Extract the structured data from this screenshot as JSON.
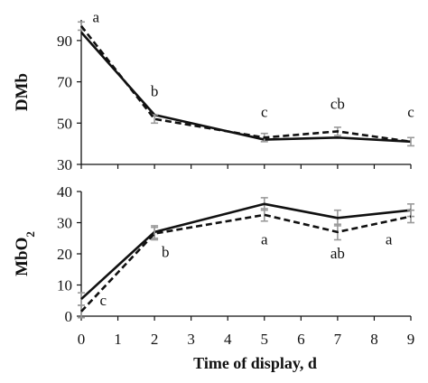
{
  "chart_data": [
    {
      "type": "line",
      "ylabel": "DMb",
      "ylim": [
        30,
        100
      ],
      "yticks": [
        30,
        50,
        70,
        90
      ],
      "x": [
        0,
        2,
        5,
        7,
        9
      ],
      "series": [
        {
          "style": "solid",
          "color": "#111111",
          "values": [
            94,
            54,
            42,
            43,
            41
          ]
        },
        {
          "style": "dashed",
          "color": "#111111",
          "values": [
            97,
            52,
            43,
            46,
            41
          ],
          "error": [
            2,
            2,
            2,
            2,
            2
          ]
        }
      ],
      "annotations": [
        {
          "x": 0.4,
          "y": 99,
          "text": "a"
        },
        {
          "x": 2,
          "y": 63,
          "text": "b"
        },
        {
          "x": 5,
          "y": 53,
          "text": "c"
        },
        {
          "x": 7,
          "y": 57,
          "text": "cb"
        },
        {
          "x": 9,
          "y": 53,
          "text": "c"
        }
      ]
    },
    {
      "type": "line",
      "ylabel": "MbO2",
      "ylabel_main": "MbO",
      "ylabel_sub": "2",
      "ylim": [
        0,
        40
      ],
      "yticks": [
        0,
        10,
        20,
        30,
        40
      ],
      "x": [
        0,
        2,
        5,
        7,
        9
      ],
      "xlabel": "Time of display, d",
      "xticks": [
        0,
        1,
        2,
        3,
        4,
        5,
        6,
        7,
        8,
        9
      ],
      "series": [
        {
          "style": "solid",
          "color": "#111111",
          "values": [
            5.5,
            27,
            36,
            31.5,
            34
          ],
          "error": [
            2,
            2,
            2,
            2.5,
            2
          ]
        },
        {
          "style": "dashed",
          "color": "#111111",
          "values": [
            1.5,
            26.5,
            32.5,
            27,
            32
          ],
          "error": [
            2,
            2,
            2,
            2.5,
            2
          ]
        }
      ],
      "annotations": [
        {
          "x": 0.6,
          "y": 3.5,
          "text": "c"
        },
        {
          "x": 2.3,
          "y": 19,
          "text": "b"
        },
        {
          "x": 5,
          "y": 23,
          "text": "a"
        },
        {
          "x": 7,
          "y": 18.5,
          "text": "ab"
        },
        {
          "x": 8.4,
          "y": 23,
          "text": "a"
        }
      ]
    }
  ],
  "colors": {
    "line": "#111111",
    "errorbar": "#9a9a9a",
    "axis": "#111111"
  }
}
